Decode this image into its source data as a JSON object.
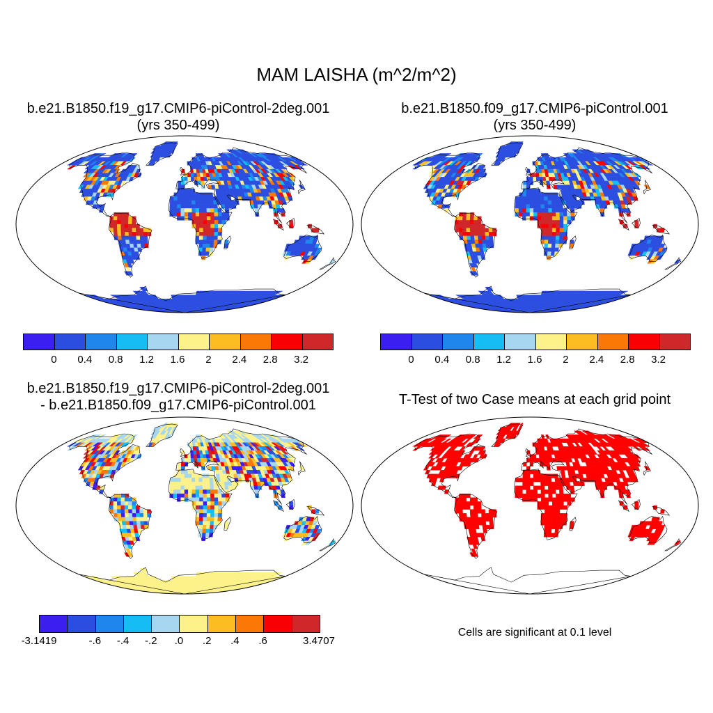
{
  "title": "MAM LAISHA (m^2/m^2)",
  "panels": [
    {
      "id": "p1",
      "title_line1": "b.e21.B1850.f19_g17.CMIP6-piControl-2deg.001",
      "title_line2": "(yrs 350-499)",
      "fill": "mean"
    },
    {
      "id": "p2",
      "title_line1": "b.e21.B1850.f09_g17.CMIP6-piControl.001",
      "title_line2": "(yrs 350-499)",
      "fill": "mean"
    },
    {
      "id": "p3",
      "title_line1": "b.e21.B1850.f19_g17.CMIP6-piControl-2deg.001",
      "title_line2": "- b.e21.B1850.f09_g17.CMIP6-piControl.001",
      "fill": "diff"
    },
    {
      "id": "p4",
      "title_line1": "T-Test of two Case means at each grid point",
      "title_line2": "",
      "fill": "ttest"
    }
  ],
  "colorbar_mean": {
    "colors": [
      "#3b1ef0",
      "#2c4ee0",
      "#1f86ee",
      "#16bdf5",
      "#a7d6f0",
      "#fdf28a",
      "#fbbd22",
      "#fb7806",
      "#f90005",
      "#d0272a"
    ],
    "labels": [
      "0",
      "0.4",
      "0.8",
      "1.2",
      "1.6",
      "2",
      "2.4",
      "2.8",
      "3.2"
    ]
  },
  "colorbar_diff": {
    "colors": [
      "#3b1ef0",
      "#2c4ee0",
      "#1f86ee",
      "#16bdf5",
      "#a7d6f0",
      "#fdf28a",
      "#fbbd22",
      "#fb7806",
      "#f90005",
      "#d0272a"
    ],
    "labels": [
      "-3.1419",
      "-.6",
      "-.4",
      "-.2",
      ".0",
      ".2",
      ".4",
      ".6",
      "3.4707"
    ]
  },
  "significance_color": "#ff0000",
  "note": "Cells are significant at 0.1 level"
}
